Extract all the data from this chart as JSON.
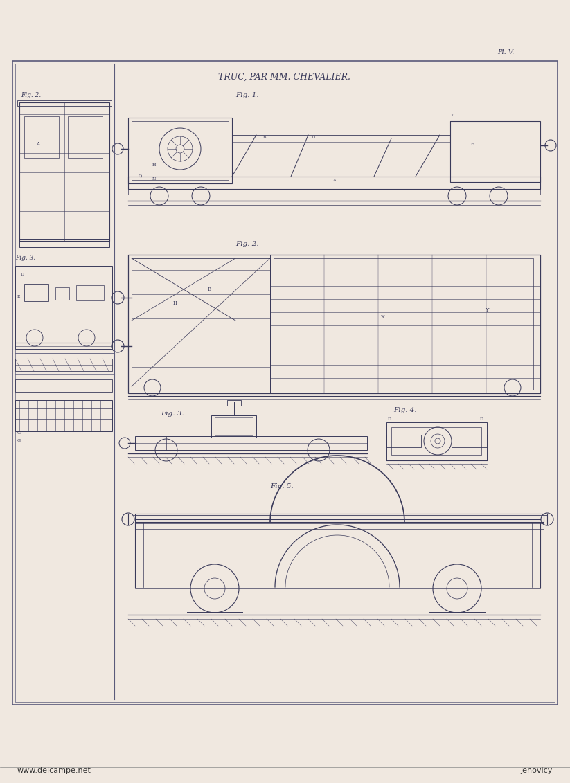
{
  "background_color": "#f0e8e0",
  "paper_color": "#ede0d4",
  "border_color": "#5a5a7a",
  "line_color": "#3a3a5a",
  "title": "TRUC, PAR MM. CHEVALIER.",
  "plate_label": "Pl. V.",
  "watermark_left": "www.delcampe.net",
  "watermark_right": "jenovicy",
  "fig_labels": [
    "Fig. 1.",
    "Fig. 2.",
    "Fig. 3.",
    "Fig. 4.",
    "Fig. 5."
  ],
  "small_fig_labels": [
    "Fig. 2.",
    "Fig. 3."
  ],
  "title_fontsize": 9,
  "label_fontsize": 7.5,
  "small_label_fontsize": 6.5
}
